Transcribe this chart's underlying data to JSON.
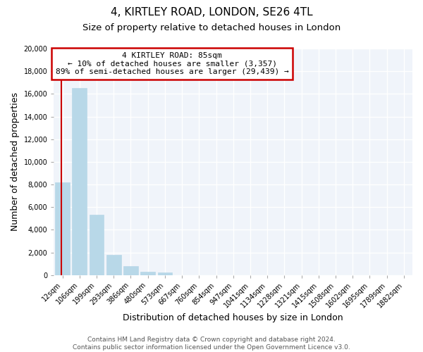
{
  "title": "4, KIRTLEY ROAD, LONDON, SE26 4TL",
  "subtitle": "Size of property relative to detached houses in London",
  "xlabel": "Distribution of detached houses by size in London",
  "ylabel": "Number of detached properties",
  "categories": [
    "12sqm",
    "106sqm",
    "199sqm",
    "293sqm",
    "386sqm",
    "480sqm",
    "573sqm",
    "667sqm",
    "760sqm",
    "854sqm",
    "947sqm",
    "1041sqm",
    "1134sqm",
    "1228sqm",
    "1321sqm",
    "1415sqm",
    "1508sqm",
    "1602sqm",
    "1695sqm",
    "1789sqm",
    "1882sqm"
  ],
  "values": [
    8200,
    16500,
    5300,
    1800,
    800,
    300,
    250,
    0,
    0,
    0,
    0,
    0,
    0,
    0,
    0,
    0,
    0,
    0,
    0,
    0,
    0
  ],
  "bar_color": "#b8d8e8",
  "annotation_title": "4 KIRTLEY ROAD: 85sqm",
  "annotation_line1": "← 10% of detached houses are smaller (3,357)",
  "annotation_line2": "89% of semi-detached houses are larger (29,439) →",
  "annotation_box_color": "#ffffff",
  "annotation_box_edge": "#cc0000",
  "vline_color": "#cc0000",
  "vline_x": -0.07,
  "ylim": [
    0,
    20000
  ],
  "yticks": [
    0,
    2000,
    4000,
    6000,
    8000,
    10000,
    12000,
    14000,
    16000,
    18000,
    20000
  ],
  "footer1": "Contains HM Land Registry data © Crown copyright and database right 2024.",
  "footer2": "Contains public sector information licensed under the Open Government Licence v3.0.",
  "background_color": "#ffffff",
  "plot_bg_color": "#f0f4fa",
  "grid_color": "#ffffff",
  "title_fontsize": 11,
  "subtitle_fontsize": 9.5,
  "label_fontsize": 9,
  "tick_fontsize": 7,
  "footer_fontsize": 6.5,
  "annotation_fontsize": 8
}
